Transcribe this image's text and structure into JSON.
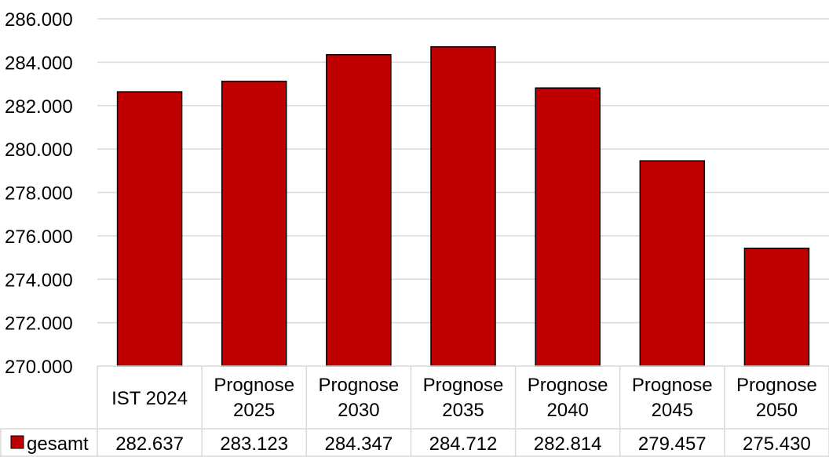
{
  "chart_data": {
    "type": "bar",
    "categories": [
      [
        "IST 2024"
      ],
      [
        "Prognose",
        "2025"
      ],
      [
        "Prognose",
        "2030"
      ],
      [
        "Prognose",
        "2035"
      ],
      [
        "Prognose",
        "2040"
      ],
      [
        "Prognose",
        "2045"
      ],
      [
        "Prognose",
        "2050"
      ]
    ],
    "series": [
      {
        "name": "gesamt",
        "color": "#C00000",
        "values": [
          282637,
          283123,
          284347,
          284712,
          282814,
          279457,
          275430
        ],
        "value_labels": [
          "282.637",
          "283.123",
          "284.347",
          "284.712",
          "282.814",
          "279.457",
          "275.430"
        ]
      }
    ],
    "ylim": [
      270000,
      286000
    ],
    "yticks": [
      270000,
      272000,
      274000,
      276000,
      278000,
      280000,
      282000,
      284000,
      286000
    ],
    "ytick_labels": [
      "270.000",
      "272.000",
      "274.000",
      "276.000",
      "278.000",
      "280.000",
      "282.000",
      "284.000",
      "286.000"
    ],
    "grid": true,
    "data_table": true,
    "title": "",
    "xlabel": "",
    "ylabel": ""
  }
}
